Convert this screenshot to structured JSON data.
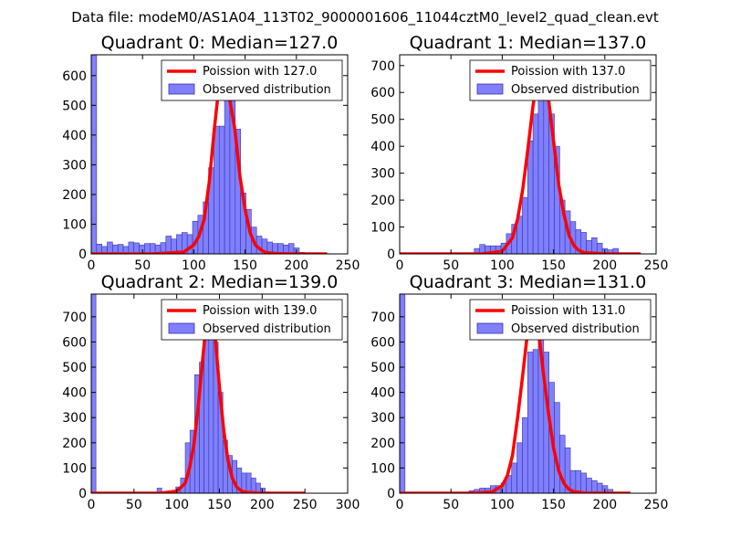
{
  "figure_title": "Data file: modeM0/AS1A04_113T02_9000001606_11044cztM0_level2_quad_clean.evt",
  "colors": {
    "bar": "#8080ff",
    "bar_edge": "#3333aa",
    "poisson": "#ff0000"
  },
  "chart_data": [
    {
      "type": "bar",
      "title": "Quadrant 0: Median=127.0",
      "xlim": [
        0,
        250
      ],
      "ylim": [
        0,
        670
      ],
      "xticks": [
        0,
        50,
        100,
        150,
        200,
        250
      ],
      "yticks": [
        0,
        100,
        200,
        300,
        400,
        500,
        600
      ],
      "legend": {
        "position": "top-right",
        "line_label": "Poission with 127.0",
        "bar_label": "Observed distribution"
      },
      "median": 127.0,
      "bin_width": 5.2,
      "hist": {
        "x": [
          0,
          5.2,
          10.4,
          15.6,
          20.8,
          26,
          31.2,
          36.4,
          41.6,
          46.8,
          52,
          57.2,
          62.4,
          67.6,
          72.8,
          78,
          83.2,
          88.4,
          93.6,
          98.8,
          104,
          109.2,
          114.4,
          119.6,
          124.8,
          130,
          135.2,
          140.4,
          145.6,
          150.8,
          156,
          161.2,
          166.4,
          171.6,
          176.8,
          182,
          187.2,
          192.4,
          197.6,
          202.8
        ],
        "counts": [
          670,
          33,
          25,
          40,
          30,
          32,
          25,
          40,
          37,
          30,
          35,
          35,
          30,
          38,
          60,
          50,
          65,
          72,
          65,
          110,
          130,
          175,
          290,
          430,
          430,
          620,
          560,
          420,
          205,
          150,
          90,
          60,
          50,
          40,
          35,
          35,
          30,
          35,
          20,
          5
        ]
      },
      "poisson": {
        "x": [
          0,
          60,
          90,
          100,
          105,
          110,
          115,
          120,
          125,
          127,
          130,
          135,
          140,
          145,
          150,
          155,
          160,
          165,
          170,
          180,
          200,
          230
        ],
        "y": [
          0,
          0,
          6,
          30,
          60,
          115,
          240,
          420,
          580,
          625,
          610,
          520,
          420,
          260,
          150,
          70,
          30,
          15,
          5,
          1,
          0,
          0
        ]
      }
    },
    {
      "type": "bar",
      "title": "Quadrant 1: Median=137.0",
      "xlim": [
        0,
        250
      ],
      "ylim": [
        0,
        740
      ],
      "xticks": [
        0,
        50,
        100,
        150,
        200,
        250
      ],
      "yticks": [
        0,
        100,
        200,
        300,
        400,
        500,
        600,
        700
      ],
      "legend": {
        "position": "top-right",
        "line_label": "Poission with 137.0",
        "bar_label": "Observed distribution"
      },
      "median": 137.0,
      "bin_width": 5.2,
      "hist": {
        "x": [
          72.8,
          78,
          83.2,
          88.4,
          93.6,
          98.8,
          104,
          109.2,
          114.4,
          119.6,
          124.8,
          130,
          135.2,
          140.4,
          145.6,
          150.8,
          156,
          161.2,
          166.4,
          171.6,
          176.8,
          182,
          187.2,
          192.4,
          197.6,
          202.8,
          208
        ],
        "counts": [
          20,
          35,
          30,
          30,
          30,
          40,
          75,
          110,
          140,
          210,
          420,
          520,
          600,
          650,
          520,
          400,
          200,
          160,
          120,
          90,
          80,
          50,
          60,
          40,
          20,
          15,
          20
        ]
      },
      "poisson": {
        "x": [
          0,
          80,
          100,
          110,
          115,
          120,
          125,
          130,
          135,
          137,
          140,
          145,
          150,
          155,
          160,
          165,
          170,
          175,
          180,
          200,
          235
        ],
        "y": [
          0,
          0,
          10,
          60,
          130,
          240,
          390,
          550,
          680,
          705,
          690,
          580,
          420,
          260,
          150,
          70,
          30,
          12,
          5,
          0,
          0
        ]
      }
    },
    {
      "type": "bar",
      "title": "Quadrant 2: Median=139.0",
      "xlim": [
        0,
        300
      ],
      "ylim": [
        0,
        790
      ],
      "xticks": [
        0,
        50,
        100,
        150,
        200,
        250,
        300
      ],
      "yticks": [
        0,
        100,
        200,
        300,
        400,
        500,
        600,
        700
      ],
      "legend": {
        "position": "top-right",
        "line_label": "Poission with 139.0",
        "bar_label": "Observed distribution"
      },
      "median": 139.0,
      "bin_width": 5.5,
      "hist": {
        "x": [
          0,
          77,
          99,
          104.5,
          110,
          115.5,
          121,
          126.5,
          132,
          137.5,
          143,
          148.5,
          154,
          159.5,
          165,
          170.5,
          176,
          181.5,
          187,
          192.5,
          198,
          203.5
        ],
        "counts": [
          790,
          20,
          25,
          60,
          200,
          250,
          470,
          520,
          690,
          760,
          600,
          400,
          210,
          150,
          130,
          100,
          80,
          80,
          60,
          40,
          20,
          5
        ]
      },
      "poisson": {
        "x": [
          0,
          80,
          100,
          110,
          115,
          120,
          125,
          130,
          135,
          139,
          145,
          150,
          155,
          160,
          165,
          170,
          175,
          180,
          200,
          250
        ],
        "y": [
          0,
          0,
          8,
          40,
          100,
          190,
          340,
          520,
          690,
          750,
          620,
          420,
          250,
          130,
          60,
          25,
          10,
          4,
          0,
          0
        ]
      }
    },
    {
      "type": "bar",
      "title": "Quadrant 3: Median=131.0",
      "xlim": [
        0,
        250
      ],
      "ylim": [
        0,
        790
      ],
      "xticks": [
        0,
        50,
        100,
        150,
        200,
        250
      ],
      "yticks": [
        0,
        100,
        200,
        300,
        400,
        500,
        600,
        700
      ],
      "legend": {
        "position": "top-right",
        "line_label": "Poission with 131.0",
        "bar_label": "Observed distribution"
      },
      "median": 131.0,
      "bin_width": 5.2,
      "hist": {
        "x": [
          0,
          67.6,
          72.8,
          78,
          83.2,
          88.4,
          93.6,
          98.8,
          104,
          109.2,
          114.4,
          119.6,
          124.8,
          130,
          135.2,
          140.4,
          145.6,
          150.8,
          156,
          161.2,
          166.4,
          171.6,
          176.8,
          182,
          187.2,
          192.4,
          197.6,
          202.8
        ],
        "counts": [
          790,
          10,
          15,
          20,
          20,
          30,
          30,
          40,
          70,
          120,
          200,
          300,
          560,
          570,
          650,
          560,
          440,
          360,
          230,
          180,
          90,
          90,
          80,
          60,
          50,
          40,
          30,
          15
        ]
      },
      "poisson": {
        "x": [
          0,
          70,
          90,
          100,
          105,
          110,
          115,
          120,
          125,
          131,
          135,
          140,
          145,
          150,
          155,
          160,
          165,
          170,
          180,
          200,
          225
        ],
        "y": [
          0,
          0,
          5,
          30,
          70,
          150,
          300,
          470,
          650,
          740,
          660,
          480,
          320,
          180,
          90,
          40,
          15,
          6,
          1,
          0,
          0
        ]
      }
    }
  ]
}
